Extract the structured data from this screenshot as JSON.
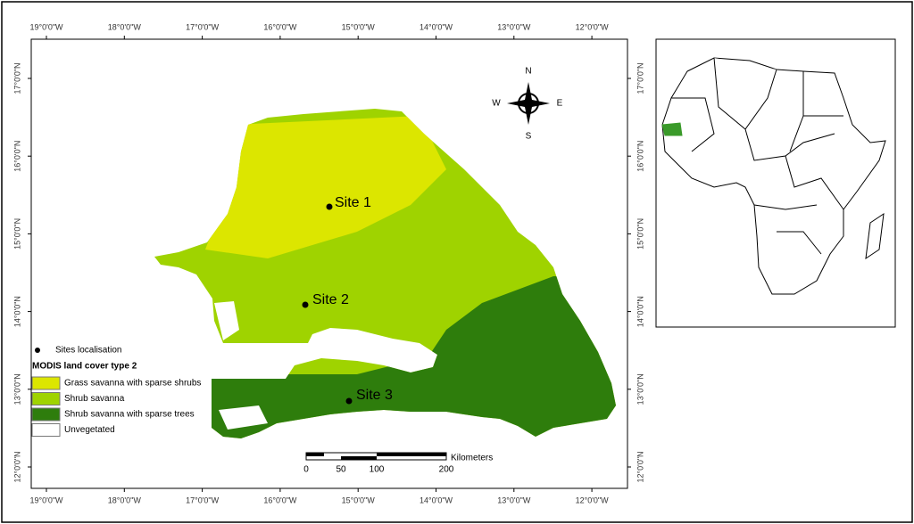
{
  "map": {
    "lon_labels": [
      "19°0'0\"W",
      "18°0'0\"W",
      "17°0'0\"W",
      "16°0'0\"W",
      "15°0'0\"W",
      "14°0'0\"W",
      "13°0'0\"W",
      "12°0'0\"W"
    ],
    "lat_labels": [
      "17°0'0\"N",
      "16°0'0\"N",
      "15°0'0\"N",
      "14°0'0\"N",
      "13°0'0\"N",
      "12°0'0\"N"
    ],
    "compass": {
      "n": "N",
      "s": "S",
      "e": "E",
      "w": "W"
    },
    "sites": [
      "Site 1",
      "Site 2",
      "Site 3"
    ],
    "legend": {
      "sites_label": "Sites localisation",
      "title": "MODIS land cover type 2",
      "items": [
        {
          "label": "Grass savanna with sparse shrubs",
          "color": "#dce600"
        },
        {
          "label": "Shrub savanna",
          "color": "#9fd300"
        },
        {
          "label": "Shrub savanna with sparse trees",
          "color": "#2e7d0c"
        },
        {
          "label": "Unvegetated",
          "color": "#ffffff"
        }
      ]
    },
    "scale_bar": {
      "labels": [
        0,
        50,
        100,
        200
      ],
      "unit": "Kilometers"
    }
  }
}
